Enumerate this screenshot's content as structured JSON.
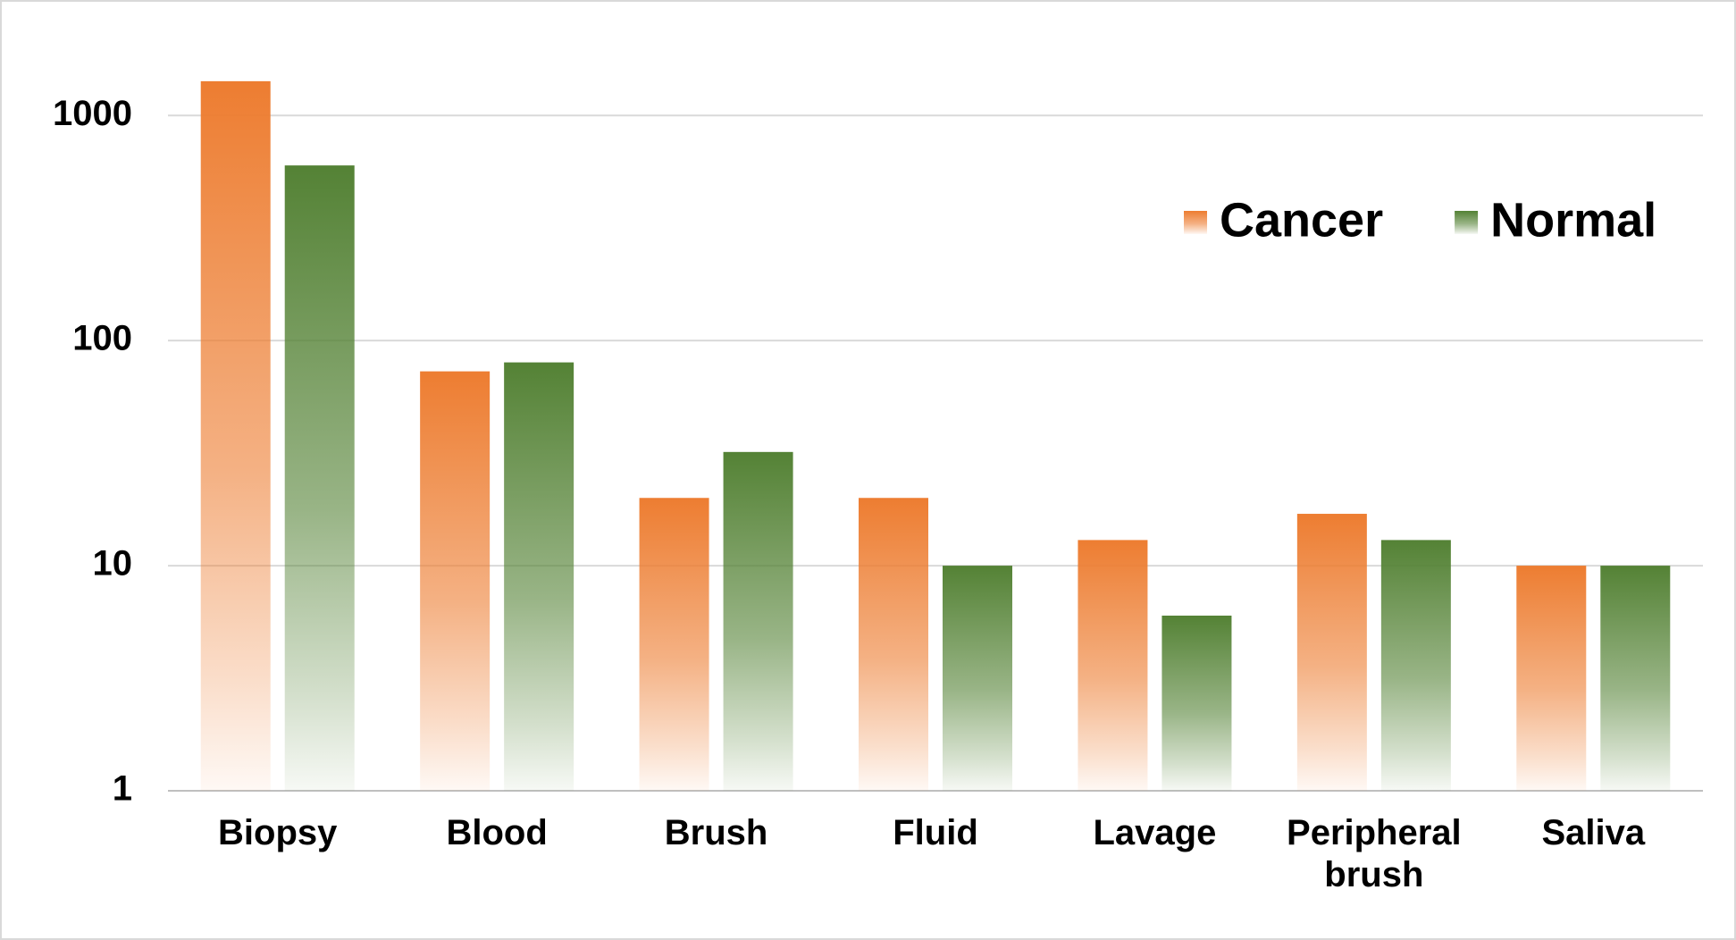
{
  "chart_data": {
    "type": "bar",
    "log_scale": true,
    "grid": true,
    "legend": "top-right",
    "categories": [
      "Biopsy",
      "Blood",
      "Brush",
      "Fluid",
      "Lavage",
      "Peripheral brush",
      "Saliva"
    ],
    "series": [
      {
        "name": "Cancer",
        "color": "#ed7d31",
        "values": [
          1420,
          73,
          20,
          20,
          13,
          17,
          10
        ]
      },
      {
        "name": "Normal",
        "color": "#548235",
        "values": [
          600,
          80,
          32,
          10,
          6,
          13,
          10
        ]
      }
    ],
    "ylim": [
      1,
      2500
    ],
    "yticks": [
      1,
      10,
      100,
      1000
    ]
  }
}
